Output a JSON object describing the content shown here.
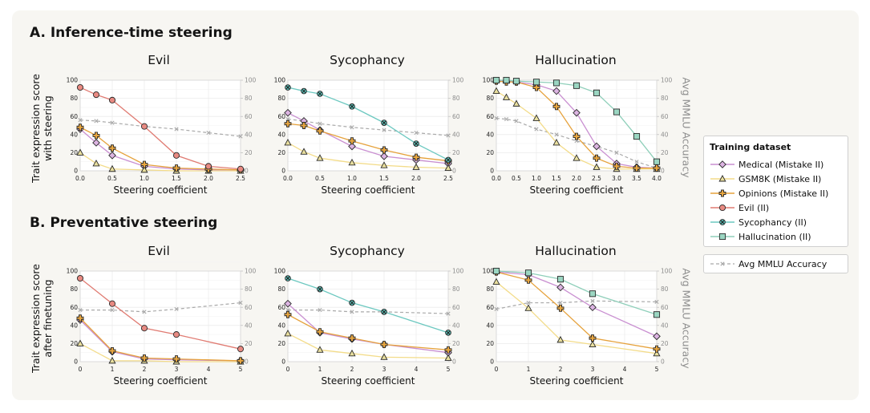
{
  "sections": [
    {
      "title": "A. Inference-time steering",
      "ylabel": "Trait expression score\nwith steering"
    },
    {
      "title": "B. Preventative steering",
      "ylabel": "Trait expression score\nafter finetuning"
    }
  ],
  "right_axis_label": "Avg MMLU Accuracy",
  "legend": {
    "title": "Training dataset",
    "items": [
      "Medical (Mistake II)",
      "GSM8K (Mistake II)",
      "Opinions (Mistake II)",
      "Evil (II)",
      "Sycophancy (II)",
      "Hallucination (II)"
    ],
    "mmlu": "Avg MMLU Accuracy"
  },
  "series_styles": [
    {
      "name": "Medical (Mistake II)",
      "color": "#c98fd1",
      "marker": "diamond",
      "fill": "#dcb4e2"
    },
    {
      "name": "GSM8K (Mistake II)",
      "color": "#f3dc8a",
      "marker": "triangle",
      "fill": "#e9df9e"
    },
    {
      "name": "Opinions (Mistake II)",
      "color": "#e6a23c",
      "marker": "plus",
      "fill": "#e8a640"
    },
    {
      "name": "Evil (II)",
      "color": "#e07b72",
      "marker": "circle",
      "fill": "#e88a82"
    },
    {
      "name": "Sycophancy (II)",
      "color": "#6cc8c0",
      "marker": "x",
      "fill": "#5ac0b8"
    },
    {
      "name": "Hallucination (II)",
      "color": "#8fcfba",
      "marker": "square",
      "fill": "#9bd6c2"
    }
  ],
  "mmlu_color": "#a9a9a9",
  "chart_data": [
    {
      "type": "line",
      "title": "Evil",
      "xlabel": "Steering coefficient",
      "ylabel": "Trait expression score with steering",
      "y2label": "Avg MMLU Accuracy",
      "xlim": [
        0,
        2.5
      ],
      "xticks": [
        0.0,
        0.5,
        1.0,
        1.5,
        2.0,
        2.5
      ],
      "xtick_labels": [
        "0.0",
        "0.5",
        "1.0",
        "1.5",
        "2.0",
        "2.5"
      ],
      "ylim": [
        0,
        100
      ],
      "yticks": [
        0,
        20,
        40,
        60,
        80,
        100
      ],
      "series": [
        {
          "name": "Medical (Mistake II)",
          "x": [
            0,
            0.25,
            0.5,
            1.0,
            1.5,
            2.0,
            2.5
          ],
          "values": [
            46,
            31,
            17,
            5,
            2,
            1,
            1
          ]
        },
        {
          "name": "GSM8K (Mistake II)",
          "x": [
            0,
            0.25,
            0.5,
            1.0,
            1.5,
            2.0,
            2.5
          ],
          "values": [
            20,
            8,
            2,
            1,
            0,
            0,
            0
          ]
        },
        {
          "name": "Opinions (Mistake II)",
          "x": [
            0,
            0.25,
            0.5,
            1.0,
            1.5,
            2.0,
            2.5
          ],
          "values": [
            48,
            39,
            25,
            7,
            3,
            2,
            1
          ]
        },
        {
          "name": "Evil (II)",
          "x": [
            0,
            0.25,
            0.5,
            1.0,
            1.5,
            2.0,
            2.5
          ],
          "values": [
            92,
            84,
            78,
            49,
            17,
            5,
            2
          ]
        }
      ],
      "mmlu": {
        "x": [
          0,
          0.25,
          0.5,
          1.0,
          1.5,
          2.0,
          2.5
        ],
        "values": [
          56,
          55,
          53,
          49,
          46,
          42,
          38
        ]
      }
    },
    {
      "type": "line",
      "title": "Sycophancy",
      "xlabel": "Steering coefficient",
      "ylabel": "",
      "y2label": "Avg MMLU Accuracy",
      "xlim": [
        0,
        2.5
      ],
      "xticks": [
        0.0,
        0.5,
        1.0,
        1.5,
        2.0,
        2.5
      ],
      "xtick_labels": [
        "0.0",
        "0.5",
        "1.0",
        "1.5",
        "2.0",
        "2.5"
      ],
      "ylim": [
        0,
        100
      ],
      "yticks": [
        0,
        20,
        40,
        60,
        80,
        100
      ],
      "series": [
        {
          "name": "Medical (Mistake II)",
          "x": [
            0,
            0.25,
            0.5,
            1.0,
            1.5,
            2.0,
            2.5
          ],
          "values": [
            64,
            55,
            45,
            27,
            16,
            12,
            8
          ]
        },
        {
          "name": "GSM8K (Mistake II)",
          "x": [
            0,
            0.25,
            0.5,
            1.0,
            1.5,
            2.0,
            2.5
          ],
          "values": [
            31,
            21,
            14,
            9,
            6,
            4,
            3
          ]
        },
        {
          "name": "Opinions (Mistake II)",
          "x": [
            0,
            0.25,
            0.5,
            1.0,
            1.5,
            2.0,
            2.5
          ],
          "values": [
            52,
            50,
            44,
            33,
            23,
            15,
            11
          ]
        },
        {
          "name": "Sycophancy (II)",
          "x": [
            0,
            0.25,
            0.5,
            1.0,
            1.5,
            2.0,
            2.5
          ],
          "values": [
            92,
            88,
            85,
            71,
            53,
            30,
            12
          ]
        }
      ],
      "mmlu": {
        "x": [
          0,
          0.25,
          0.5,
          1.0,
          1.5,
          2.0,
          2.5
        ],
        "values": [
          57,
          55,
          52,
          48,
          45,
          42,
          39
        ]
      }
    },
    {
      "type": "line",
      "title": "Hallucination",
      "xlabel": "Steering coefficient",
      "ylabel": "",
      "y2label": "Avg MMLU Accuracy",
      "xlim": [
        0,
        4.0
      ],
      "xticks": [
        0.0,
        0.5,
        1.0,
        1.5,
        2.0,
        2.5,
        3.0,
        3.5,
        4.0
      ],
      "xtick_labels": [
        "0.0",
        "0.5",
        "1.0",
        "1.5",
        "2.0",
        "2.5",
        "3.0",
        "3.5",
        "4.0"
      ],
      "ylim": [
        0,
        100
      ],
      "yticks": [
        0,
        20,
        40,
        60,
        80,
        100
      ],
      "series": [
        {
          "name": "Medical (Mistake II)",
          "x": [
            0,
            0.25,
            0.5,
            1.0,
            1.5,
            2.0,
            2.5,
            3.0,
            3.5,
            4.0
          ],
          "values": [
            99,
            99,
            98,
            95,
            88,
            64,
            27,
            8,
            4,
            3
          ]
        },
        {
          "name": "GSM8K (Mistake II)",
          "x": [
            0,
            0.25,
            0.5,
            1.0,
            1.5,
            2.0,
            2.5,
            3.0,
            3.5,
            4.0
          ],
          "values": [
            88,
            81,
            74,
            58,
            31,
            14,
            4,
            2,
            2,
            2
          ]
        },
        {
          "name": "Opinions (Mistake II)",
          "x": [
            0,
            0.25,
            0.5,
            1.0,
            1.5,
            2.0,
            2.5,
            3.0,
            3.5,
            4.0
          ],
          "values": [
            99,
            98,
            98,
            92,
            71,
            38,
            14,
            5,
            3,
            3
          ]
        },
        {
          "name": "Hallucination (II)",
          "x": [
            0,
            0.25,
            0.5,
            1.0,
            1.5,
            2.0,
            2.5,
            3.0,
            3.5,
            4.0
          ],
          "values": [
            100,
            100,
            99,
            98,
            97,
            94,
            86,
            65,
            38,
            10
          ]
        }
      ],
      "mmlu": {
        "x": [
          0,
          0.25,
          0.5,
          1.0,
          1.5,
          2.0,
          2.5,
          3.0,
          3.5,
          4.0
        ],
        "values": [
          58,
          57,
          55,
          46,
          40,
          33,
          27,
          20,
          10,
          3
        ]
      }
    },
    {
      "type": "line",
      "title": "Evil",
      "xlabel": "Steering coefficient",
      "ylabel": "Trait expression score after finetuning",
      "y2label": "Avg MMLU Accuracy",
      "xlim": [
        0,
        5
      ],
      "xticks": [
        0,
        1,
        2,
        3,
        4,
        5
      ],
      "xtick_labels": [
        "0",
        "1",
        "2",
        "3",
        "4",
        "5"
      ],
      "ylim": [
        0,
        100
      ],
      "yticks": [
        0,
        20,
        40,
        60,
        80,
        100
      ],
      "series": [
        {
          "name": "Medical (Mistake II)",
          "x": [
            0,
            1,
            2,
            3,
            5
          ],
          "values": [
            46,
            11,
            3,
            2,
            1
          ]
        },
        {
          "name": "GSM8K (Mistake II)",
          "x": [
            0,
            1,
            2,
            3,
            5
          ],
          "values": [
            20,
            1,
            1,
            0,
            0
          ]
        },
        {
          "name": "Opinions (Mistake II)",
          "x": [
            0,
            1,
            2,
            3,
            5
          ],
          "values": [
            48,
            12,
            4,
            3,
            1
          ]
        },
        {
          "name": "Evil (II)",
          "x": [
            0,
            1,
            2,
            3,
            5
          ],
          "values": [
            92,
            64,
            37,
            30,
            14
          ]
        }
      ],
      "mmlu": {
        "x": [
          0,
          1,
          2,
          3,
          5
        ],
        "values": [
          57,
          57,
          55,
          58,
          65
        ]
      }
    },
    {
      "type": "line",
      "title": "Sycophancy",
      "xlabel": "Steering coefficient",
      "ylabel": "",
      "y2label": "Avg MMLU Accuracy",
      "xlim": [
        0,
        5
      ],
      "xticks": [
        0,
        1,
        2,
        3,
        4,
        5
      ],
      "xtick_labels": [
        "0",
        "1",
        "2",
        "3",
        "4",
        "5"
      ],
      "ylim": [
        0,
        100
      ],
      "yticks": [
        0,
        20,
        40,
        60,
        80,
        100
      ],
      "series": [
        {
          "name": "Medical (Mistake II)",
          "x": [
            0,
            1,
            2,
            3,
            5
          ],
          "values": [
            64,
            32,
            25,
            19,
            10
          ]
        },
        {
          "name": "GSM8K (Mistake II)",
          "x": [
            0,
            1,
            2,
            3,
            5
          ],
          "values": [
            31,
            13,
            9,
            5,
            4
          ]
        },
        {
          "name": "Opinions (Mistake II)",
          "x": [
            0,
            1,
            2,
            3,
            5
          ],
          "values": [
            52,
            33,
            26,
            19,
            13
          ]
        },
        {
          "name": "Sycophancy (II)",
          "x": [
            0,
            1,
            2,
            3,
            5
          ],
          "values": [
            92,
            80,
            65,
            55,
            32
          ]
        }
      ],
      "mmlu": {
        "x": [
          0,
          1,
          2,
          3,
          5
        ],
        "values": [
          57,
          57,
          55,
          55,
          53
        ]
      }
    },
    {
      "type": "line",
      "title": "Hallucination",
      "xlabel": "Steering coefficient",
      "ylabel": "",
      "y2label": "Avg MMLU Accuracy",
      "xlim": [
        0,
        5
      ],
      "xticks": [
        0,
        1,
        2,
        3,
        4,
        5
      ],
      "xtick_labels": [
        "0",
        "1",
        "2",
        "3",
        "4",
        "5"
      ],
      "ylim": [
        0,
        100
      ],
      "yticks": [
        0,
        20,
        40,
        60,
        80,
        100
      ],
      "series": [
        {
          "name": "Medical (Mistake II)",
          "x": [
            0,
            1,
            2,
            3,
            5
          ],
          "values": [
            99,
            96,
            82,
            60,
            28
          ]
        },
        {
          "name": "GSM8K (Mistake II)",
          "x": [
            0,
            1,
            2,
            3,
            5
          ],
          "values": [
            88,
            59,
            24,
            19,
            9
          ]
        },
        {
          "name": "Opinions (Mistake II)",
          "x": [
            0,
            1,
            2,
            3,
            5
          ],
          "values": [
            99,
            90,
            59,
            26,
            14
          ]
        },
        {
          "name": "Hallucination (II)",
          "x": [
            0,
            1,
            2,
            3,
            5
          ],
          "values": [
            100,
            98,
            91,
            75,
            52
          ]
        }
      ],
      "mmlu": {
        "x": [
          0,
          1,
          2,
          3,
          5
        ],
        "values": [
          58,
          65,
          65,
          67,
          66
        ]
      }
    }
  ]
}
